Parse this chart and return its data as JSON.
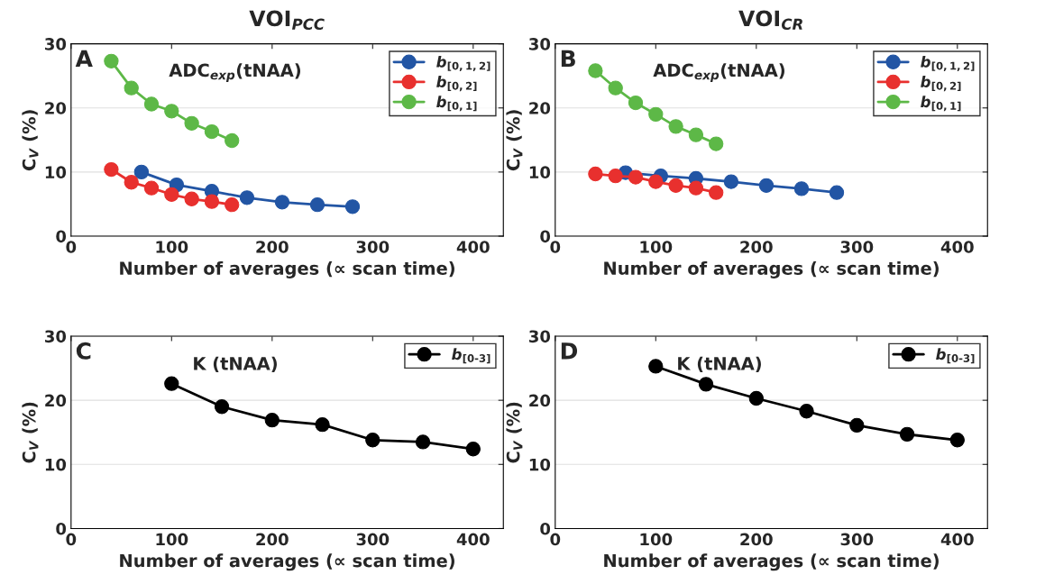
{
  "chart_data": [
    {
      "type": "line",
      "title": "VOI$_{PCC}$",
      "xlabel": "Number of averages (∝ scan time)",
      "ylabel": "C$_{V}$ (%)",
      "annotations": [
        "A",
        "ADC$_{exp}$(tNAA)"
      ],
      "xlim": [
        0,
        430
      ],
      "ylim": [
        0,
        30
      ],
      "xticks": [
        0,
        100,
        200,
        300,
        400
      ],
      "yticks": [
        0,
        10,
        20,
        30
      ],
      "grid": "y",
      "legend": "top right",
      "marker": "circle",
      "line_style": "solid",
      "series": [
        {
          "name": "b$_{[0,1,2]}$",
          "color": "#2255a4",
          "x": [
            70,
            105,
            140,
            175,
            210,
            245,
            280
          ],
          "values": [
            10.0,
            8.0,
            7.0,
            6.0,
            5.3,
            4.9,
            4.6
          ]
        },
        {
          "name": "b$_{[0,2]}$",
          "color": "#e8302e",
          "x": [
            40,
            60,
            80,
            100,
            120,
            140,
            160
          ],
          "values": [
            10.4,
            8.4,
            7.5,
            6.5,
            5.8,
            5.4,
            4.9
          ]
        },
        {
          "name": "b$_{[0,1]}$",
          "color": "#5db847",
          "x": [
            40,
            60,
            80,
            100,
            120,
            140,
            160
          ],
          "values": [
            27.3,
            23.1,
            20.6,
            19.5,
            17.6,
            16.3,
            14.9
          ]
        }
      ]
    },
    {
      "type": "line",
      "title": "VOI$_{CR}$",
      "xlabel": "Number of averages (∝ scan time)",
      "ylabel": "C$_{V}$ (%)",
      "annotations": [
        "B",
        "ADC$_{exp}$(tNAA)"
      ],
      "xlim": [
        0,
        430
      ],
      "ylim": [
        0,
        30
      ],
      "xticks": [
        0,
        100,
        200,
        300,
        400
      ],
      "yticks": [
        0,
        10,
        20,
        30
      ],
      "grid": "y",
      "legend": "top right",
      "marker": "circle",
      "line_style": "solid",
      "series": [
        {
          "name": "b$_{[0,1,2]}$",
          "color": "#2255a4",
          "x": [
            70,
            105,
            140,
            175,
            210,
            245,
            280
          ],
          "values": [
            9.9,
            9.4,
            9.0,
            8.5,
            7.9,
            7.4,
            6.8
          ]
        },
        {
          "name": "b$_{[0,2]}$",
          "color": "#e8302e",
          "x": [
            40,
            60,
            80,
            100,
            120,
            140,
            160
          ],
          "values": [
            9.7,
            9.4,
            9.2,
            8.5,
            7.9,
            7.5,
            6.8
          ]
        },
        {
          "name": "b$_{[0,1]}$",
          "color": "#5db847",
          "x": [
            40,
            60,
            80,
            100,
            120,
            140,
            160
          ],
          "values": [
            25.8,
            23.1,
            20.8,
            19.0,
            17.1,
            15.8,
            14.4
          ]
        }
      ]
    },
    {
      "type": "line",
      "xlabel": "Number of averages (∝ scan time)",
      "ylabel": "C$_{V}$ (%)",
      "annotations": [
        "C",
        "K (tNAA)"
      ],
      "xlim": [
        0,
        430
      ],
      "ylim": [
        0,
        30
      ],
      "xticks": [
        0,
        100,
        200,
        300,
        400
      ],
      "yticks": [
        0,
        10,
        20,
        30
      ],
      "grid": "y",
      "legend": "top right",
      "marker": "circle",
      "line_style": "solid",
      "series": [
        {
          "name": "b$_{[0-3]}$",
          "color": "#000000",
          "x": [
            100,
            150,
            200,
            250,
            300,
            350,
            400
          ],
          "values": [
            22.6,
            19.0,
            16.9,
            16.2,
            13.8,
            13.5,
            12.4
          ]
        }
      ]
    },
    {
      "type": "line",
      "xlabel": "Number of averages (∝ scan time)",
      "ylabel": "C$_{V}$ (%)",
      "annotations": [
        "D",
        "K (tNAA)"
      ],
      "xlim": [
        0,
        430
      ],
      "ylim": [
        0,
        30
      ],
      "xticks": [
        0,
        100,
        200,
        300,
        400
      ],
      "yticks": [
        0,
        10,
        20,
        30
      ],
      "grid": "y",
      "legend": "top right",
      "marker": "circle",
      "line_style": "solid",
      "series": [
        {
          "name": "b$_{[0-3]}$",
          "color": "#000000",
          "x": [
            100,
            150,
            200,
            250,
            300,
            350,
            400
          ],
          "values": [
            25.3,
            22.5,
            20.3,
            18.3,
            16.1,
            14.7,
            13.8
          ]
        }
      ]
    }
  ]
}
